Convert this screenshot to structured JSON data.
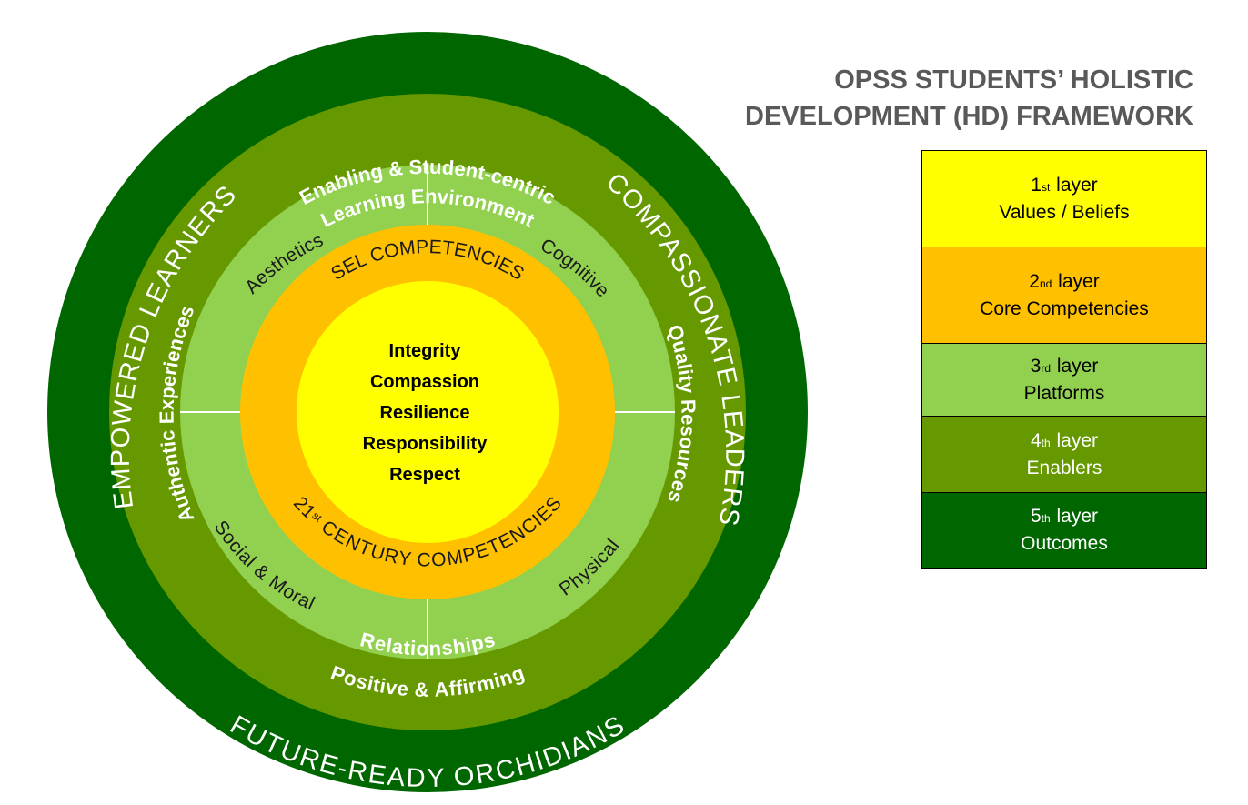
{
  "title": {
    "line1": "OPSS STUDENTS’ HOLISTIC",
    "line2": "DEVELOPMENT (HD) FRAMEWORK"
  },
  "diagram": {
    "outcomes": {
      "left": "EMPOWERED LEARNERS",
      "right": "COMPASSIONATE LEADERS",
      "bottom": "FUTURE-READY ORCHIDIANS"
    },
    "enablers": {
      "top_line1": "Enabling & Student-centric",
      "top_line2": "Learning Environment",
      "left": "Authentic Experiences",
      "right": "Quality Resources",
      "bottom_line1": "Positive & Affirming",
      "bottom_line2": "Relationships"
    },
    "platforms": {
      "top_left": "Aesthetics",
      "top_right": "Cognitive",
      "bottom_left": "Social & Moral",
      "bottom_right": "Physical"
    },
    "competencies": {
      "top": "SEL COMPETENCIES",
      "bottom_prefix": "21",
      "bottom_sup": "st",
      "bottom_rest": " CENTURY COMPETENCIES"
    },
    "values": [
      "Integrity",
      "Compassion",
      "Resilience",
      "Responsibility",
      "Respect"
    ]
  },
  "legend": [
    {
      "num": "1",
      "sup": "st",
      "word": " layer",
      "label": "Values / Beliefs",
      "color": "#ffff00"
    },
    {
      "num": "2",
      "sup": "nd",
      "word": " layer",
      "label": "Core Competencies",
      "color": "#ffc000"
    },
    {
      "num": "3",
      "sup": "rd",
      "word": " layer",
      "label": "Platforms",
      "color": "#92d050"
    },
    {
      "num": "4",
      "sup": "th",
      "word": " layer",
      "label": "Enablers",
      "color": "#669900"
    },
    {
      "num": "5",
      "sup": "th",
      "word": " layer",
      "label": "Outcomes",
      "color": "#006600"
    }
  ],
  "colors": {
    "outcomes": "#006600",
    "enablers": "#669900",
    "platforms": "#92d050",
    "competencies": "#ffc000",
    "values": "#ffff00"
  }
}
